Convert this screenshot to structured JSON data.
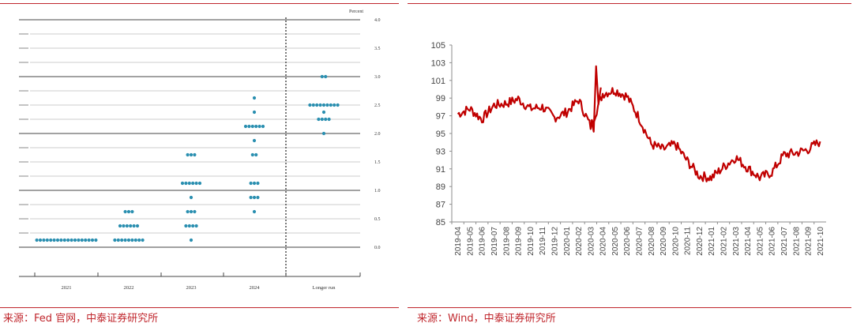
{
  "left": {
    "source": "来源：Fed 官网，中泰证券研究所",
    "chart_data": {
      "type": "scatter",
      "ylabel": "Percent",
      "ylim": [
        0,
        4.0
      ],
      "yticks": [
        "0.0",
        "0.5",
        "1.0",
        "1.5",
        "2.0",
        "2.5",
        "3.0",
        "3.5",
        "4.0"
      ],
      "categories": [
        "2021",
        "2022",
        "2023",
        "2024",
        "Longer run"
      ],
      "dots": [
        {
          "category": "2021",
          "y": 0.125,
          "count": 18
        },
        {
          "category": "2022",
          "y": 0.125,
          "count": 9
        },
        {
          "category": "2022",
          "y": 0.375,
          "count": 6
        },
        {
          "category": "2022",
          "y": 0.625,
          "count": 3
        },
        {
          "category": "2023",
          "y": 0.125,
          "count": 1
        },
        {
          "category": "2023",
          "y": 0.375,
          "count": 4
        },
        {
          "category": "2023",
          "y": 0.625,
          "count": 3
        },
        {
          "category": "2023",
          "y": 0.875,
          "count": 1
        },
        {
          "category": "2023",
          "y": 1.125,
          "count": 6
        },
        {
          "category": "2023",
          "y": 1.625,
          "count": 3
        },
        {
          "category": "2024",
          "y": 0.625,
          "count": 1
        },
        {
          "category": "2024",
          "y": 0.875,
          "count": 3
        },
        {
          "category": "2024",
          "y": 1.125,
          "count": 3
        },
        {
          "category": "2024",
          "y": 1.625,
          "count": 2
        },
        {
          "category": "2024",
          "y": 1.875,
          "count": 1
        },
        {
          "category": "2024",
          "y": 2.125,
          "count": 6
        },
        {
          "category": "2024",
          "y": 2.375,
          "count": 1
        },
        {
          "category": "2024",
          "y": 2.625,
          "count": 1
        },
        {
          "category": "Longer run",
          "y": 2.0,
          "count": 1
        },
        {
          "category": "Longer run",
          "y": 2.25,
          "count": 4
        },
        {
          "category": "Longer run",
          "y": 2.375,
          "count": 1
        },
        {
          "category": "Longer run",
          "y": 2.5,
          "count": 9
        },
        {
          "category": "Longer run",
          "y": 3.0,
          "count": 2
        }
      ],
      "dot_color": "#2a8fb0"
    }
  },
  "right": {
    "source": "来源：Wind，中泰证券研究所",
    "chart_data": {
      "type": "line",
      "ylim": [
        85,
        105
      ],
      "yticks": [
        "85",
        "87",
        "89",
        "91",
        "93",
        "95",
        "97",
        "99",
        "101",
        "103",
        "105"
      ],
      "xticks": [
        "2019-04",
        "2019-05",
        "2019-06",
        "2019-07",
        "2019-08",
        "2019-09",
        "2019-10",
        "2019-11",
        "2019-12",
        "2020-01",
        "2020-02",
        "2020-03",
        "2020-04",
        "2020-05",
        "2020-06",
        "2020-07",
        "2020-08",
        "2020-09",
        "2020-10",
        "2020-11",
        "2020-12",
        "2021-01",
        "2021-02",
        "2021-03",
        "2021-04",
        "2021-05",
        "2021-06",
        "2021-07",
        "2021-08",
        "2021-09",
        "2021-10"
      ],
      "line_color": "#c00000",
      "series": [
        {
          "x": [
            "2019-04",
            "2019-05",
            "2019-06",
            "2019-07",
            "2019-08",
            "2019-09",
            "2019-10",
            "2019-11",
            "2019-12",
            "2020-01",
            "2020-02",
            "2020-03",
            "2020-04",
            "2020-05",
            "2020-06",
            "2020-07",
            "2020-08",
            "2020-09",
            "2020-10",
            "2020-11",
            "2020-12",
            "2021-01",
            "2021-02",
            "2021-03",
            "2021-04",
            "2021-05",
            "2021-06",
            "2021-07",
            "2021-08",
            "2021-09",
            "2021-10"
          ],
          "values": [
            97.2,
            97.8,
            96.6,
            98.2,
            98.4,
            98.9,
            97.8,
            98.0,
            96.8,
            97.4,
            98.8,
            95.8,
            99.5,
            99.9,
            99.2,
            96.8,
            93.8,
            93.2,
            93.8,
            91.9,
            90.2,
            90.0,
            91.2,
            92.3,
            91.1,
            90.0,
            90.6,
            92.6,
            92.8,
            93.2,
            94.1
          ]
        }
      ]
    }
  }
}
